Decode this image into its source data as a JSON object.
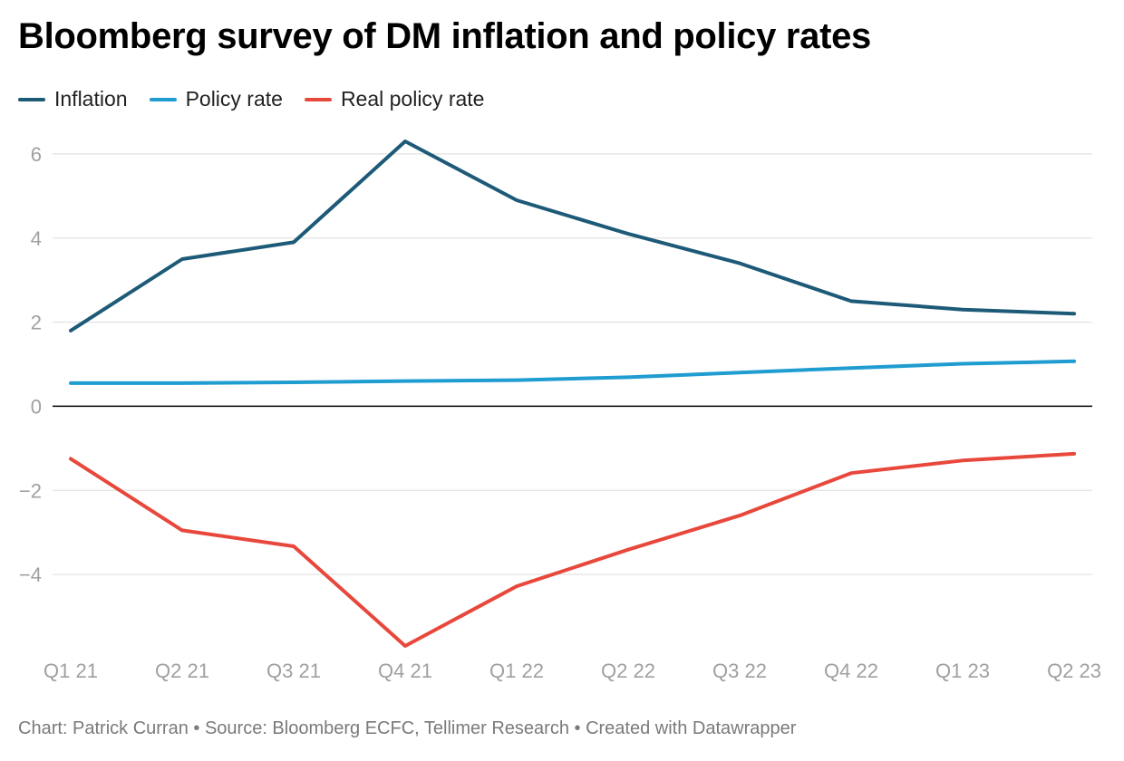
{
  "title": "Bloomberg survey of DM inflation and policy rates",
  "footer": "Chart: Patrick Curran • Source: Bloomberg ECFC, Tellimer Research • Created with Datawrapper",
  "chart_data": {
    "type": "line",
    "title": "Bloomberg survey of DM inflation and policy rates",
    "x": [
      "Q1 21",
      "Q2 21",
      "Q3 21",
      "Q4 21",
      "Q1 22",
      "Q2 22",
      "Q3 22",
      "Q4 22",
      "Q1 23",
      "Q2 23"
    ],
    "ylim": [
      -5.7,
      6.3
    ],
    "yticks": [
      -4,
      -2,
      0,
      2,
      4,
      6
    ],
    "ytick_labels": [
      "−4",
      "−2",
      "0",
      "2",
      "4",
      "6"
    ],
    "grid": true,
    "legend_position": "top-left",
    "series": [
      {
        "name": "Inflation",
        "color": "#1d5a78",
        "values": [
          1.8,
          3.5,
          3.9,
          6.3,
          4.9,
          4.1,
          3.4,
          2.5,
          2.3,
          2.2
        ]
      },
      {
        "name": "Policy rate",
        "color": "#1f9cd0",
        "values": [
          0.55,
          0.55,
          0.57,
          0.6,
          0.62,
          0.69,
          0.8,
          0.91,
          1.01,
          1.07
        ]
      },
      {
        "name": "Real policy rate",
        "color": "#e8483c",
        "values": [
          -1.25,
          -2.95,
          -3.33,
          -5.7,
          -4.28,
          -3.41,
          -2.6,
          -1.59,
          -1.29,
          -1.13
        ]
      }
    ]
  }
}
